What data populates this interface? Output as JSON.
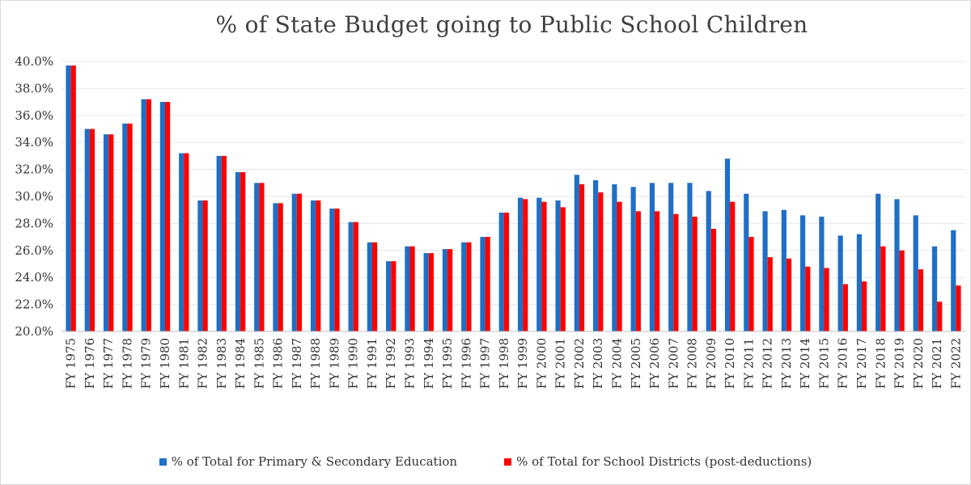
{
  "chart_data": {
    "type": "bar",
    "title": "% of State Budget going to Public School Children",
    "xlabel": "",
    "ylabel": "",
    "ylim": [
      20.0,
      40.0
    ],
    "yticks": [
      20.0,
      22.0,
      24.0,
      26.0,
      28.0,
      30.0,
      32.0,
      34.0,
      36.0,
      38.0,
      40.0
    ],
    "ytick_labels": [
      "20.0%",
      "22.0%",
      "24.0%",
      "26.0%",
      "28.0%",
      "30.0%",
      "32.0%",
      "34.0%",
      "36.0%",
      "38.0%",
      "40.0%"
    ],
    "grid": true,
    "legend_position": "bottom",
    "categories": [
      "FY 1975",
      "FY 1976",
      "FY 1977",
      "FY 1978",
      "FY 1979",
      "FY 1980",
      "FY 1981",
      "FY 1982",
      "FY 1983",
      "FY 1984",
      "FY 1985",
      "FY 1986",
      "FY 1987",
      "FY 1988",
      "FY 1989",
      "FY 1990",
      "FY 1991",
      "FY 1992",
      "FY 1993",
      "FY 1994",
      "FY 1995",
      "FY 1996",
      "FY 1997",
      "FY 1998",
      "FY 1999",
      "FY 2000",
      "FY 2001",
      "FY 2002",
      "FY 2003",
      "FY 2004",
      "FY 2005",
      "FY 2006",
      "FY 2007",
      "FY 2008",
      "FY 2009",
      "FY 2010",
      "FY 2011",
      "FY 2012",
      "FY 2013",
      "FY 2014",
      "FY 2015",
      "FY 2016",
      "FY 2017",
      "FY 2018",
      "FY 2019",
      "FY 2020",
      "FY 2021",
      "FY 2022"
    ],
    "series": [
      {
        "name": "% of Total for Primary & Secondary Education",
        "color": "#1f6fc5",
        "values": [
          39.7,
          35.0,
          34.6,
          35.4,
          37.2,
          37.0,
          33.2,
          29.7,
          33.0,
          31.8,
          31.0,
          29.5,
          30.2,
          29.7,
          29.1,
          28.1,
          26.6,
          25.2,
          26.3,
          25.8,
          26.1,
          26.6,
          27.0,
          28.8,
          29.9,
          29.9,
          29.7,
          31.6,
          31.2,
          30.9,
          30.7,
          31.0,
          31.0,
          31.0,
          30.4,
          32.8,
          30.2,
          28.9,
          29.0,
          28.6,
          28.5,
          27.1,
          27.2,
          30.2,
          29.8,
          28.6,
          26.3,
          27.5
        ]
      },
      {
        "name": "% of Total for School Districts (post-deductions)",
        "color": "#ff0000",
        "values": [
          39.7,
          35.0,
          34.6,
          35.4,
          37.2,
          37.0,
          33.2,
          29.7,
          33.0,
          31.8,
          31.0,
          29.5,
          30.2,
          29.7,
          29.1,
          28.1,
          26.6,
          25.2,
          26.3,
          25.8,
          26.1,
          26.6,
          27.0,
          28.8,
          29.8,
          29.6,
          29.2,
          30.9,
          30.3,
          29.6,
          28.9,
          28.9,
          28.7,
          28.5,
          27.6,
          29.6,
          27.0,
          25.5,
          25.4,
          24.8,
          24.7,
          23.5,
          23.7,
          26.3,
          26.0,
          24.6,
          22.2,
          23.4
        ]
      }
    ]
  }
}
